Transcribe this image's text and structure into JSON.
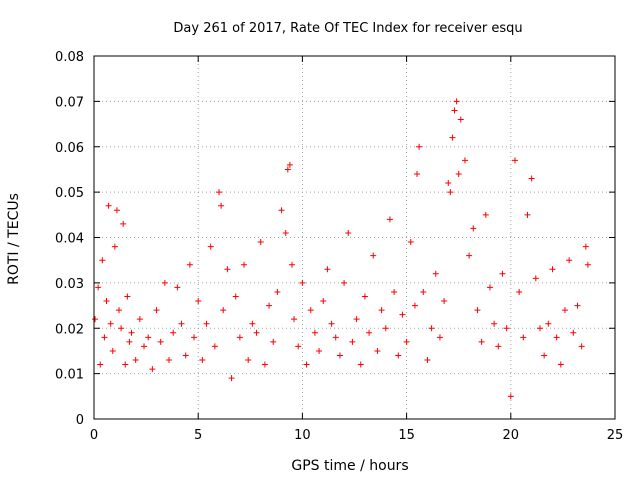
{
  "chart_data": {
    "type": "scatter",
    "title": "Day 261 of 2017, Rate Of TEC Index for receiver esqu",
    "xlabel": "GPS time / hours",
    "ylabel": "ROTI / TECUs",
    "xlim": [
      0,
      25
    ],
    "ylim": [
      0,
      0.08
    ],
    "xticks": [
      "0",
      "5",
      "10",
      "15",
      "20",
      "25"
    ],
    "yticks": [
      "0",
      "0.01",
      "0.02",
      "0.03",
      "0.04",
      "0.05",
      "0.06",
      "0.07",
      "0.08"
    ],
    "grid": true,
    "marker": "plus",
    "color": "#ff0000",
    "series": [
      {
        "x": [
          0.05,
          0.2,
          0.3,
          0.4,
          0.5,
          0.6,
          0.7,
          0.8,
          0.9,
          1.0,
          1.1,
          1.2,
          1.3,
          1.4,
          1.5,
          1.6,
          1.7,
          1.8,
          2.0,
          2.2,
          2.4,
          2.6,
          2.8,
          3.0,
          3.2,
          3.4,
          3.6,
          3.8,
          4.0,
          4.2,
          4.4,
          4.6,
          4.8,
          5.0,
          5.2,
          5.4,
          5.6,
          5.8,
          6.0,
          6.1,
          6.2,
          6.4,
          6.6,
          6.8,
          7.0,
          7.2,
          7.4,
          7.6,
          7.8,
          8.0,
          8.2,
          8.4,
          8.6,
          8.8,
          9.0,
          9.2,
          9.3,
          9.4,
          9.5,
          9.6,
          9.8,
          10.0,
          10.2,
          10.4,
          10.6,
          10.8,
          11.0,
          11.2,
          11.4,
          11.6,
          11.8,
          12.0,
          12.2,
          12.4,
          12.6,
          12.8,
          13.0,
          13.2,
          13.4,
          13.6,
          13.8,
          14.0,
          14.2,
          14.4,
          14.6,
          14.8,
          15.0,
          15.2,
          15.4,
          15.5,
          15.6,
          15.8,
          16.0,
          16.2,
          16.4,
          16.6,
          16.8,
          17.0,
          17.1,
          17.2,
          17.3,
          17.4,
          17.5,
          17.6,
          17.8,
          18.0,
          18.2,
          18.4,
          18.6,
          18.8,
          19.0,
          19.2,
          19.4,
          19.6,
          19.8,
          20.0,
          20.2,
          20.4,
          20.6,
          20.8,
          21.0,
          21.2,
          21.4,
          21.6,
          21.8,
          22.0,
          22.2,
          22.4,
          22.6,
          22.8,
          23.0,
          23.2,
          23.4,
          23.6,
          23.7
        ],
        "y": [
          0.022,
          0.029,
          0.012,
          0.035,
          0.018,
          0.026,
          0.047,
          0.021,
          0.015,
          0.038,
          0.046,
          0.024,
          0.02,
          0.043,
          0.012,
          0.027,
          0.017,
          0.019,
          0.013,
          0.022,
          0.016,
          0.018,
          0.011,
          0.024,
          0.017,
          0.03,
          0.013,
          0.019,
          0.029,
          0.021,
          0.014,
          0.034,
          0.018,
          0.026,
          0.013,
          0.021,
          0.038,
          0.016,
          0.05,
          0.047,
          0.024,
          0.033,
          0.009,
          0.027,
          0.018,
          0.034,
          0.013,
          0.021,
          0.019,
          0.039,
          0.012,
          0.025,
          0.017,
          0.028,
          0.046,
          0.041,
          0.055,
          0.056,
          0.034,
          0.022,
          0.016,
          0.03,
          0.012,
          0.024,
          0.019,
          0.015,
          0.026,
          0.033,
          0.021,
          0.018,
          0.014,
          0.03,
          0.041,
          0.017,
          0.022,
          0.012,
          0.027,
          0.019,
          0.036,
          0.015,
          0.024,
          0.02,
          0.044,
          0.028,
          0.014,
          0.023,
          0.017,
          0.039,
          0.025,
          0.054,
          0.06,
          0.028,
          0.013,
          0.02,
          0.032,
          0.018,
          0.026,
          0.052,
          0.05,
          0.062,
          0.068,
          0.07,
          0.054,
          0.066,
          0.057,
          0.036,
          0.042,
          0.024,
          0.017,
          0.045,
          0.029,
          0.021,
          0.016,
          0.032,
          0.02,
          0.005,
          0.057,
          0.028,
          0.018,
          0.045,
          0.053,
          0.031,
          0.02,
          0.014,
          0.021,
          0.033,
          0.018,
          0.012,
          0.024,
          0.035,
          0.019,
          0.025,
          0.016,
          0.038,
          0.034
        ]
      }
    ]
  }
}
